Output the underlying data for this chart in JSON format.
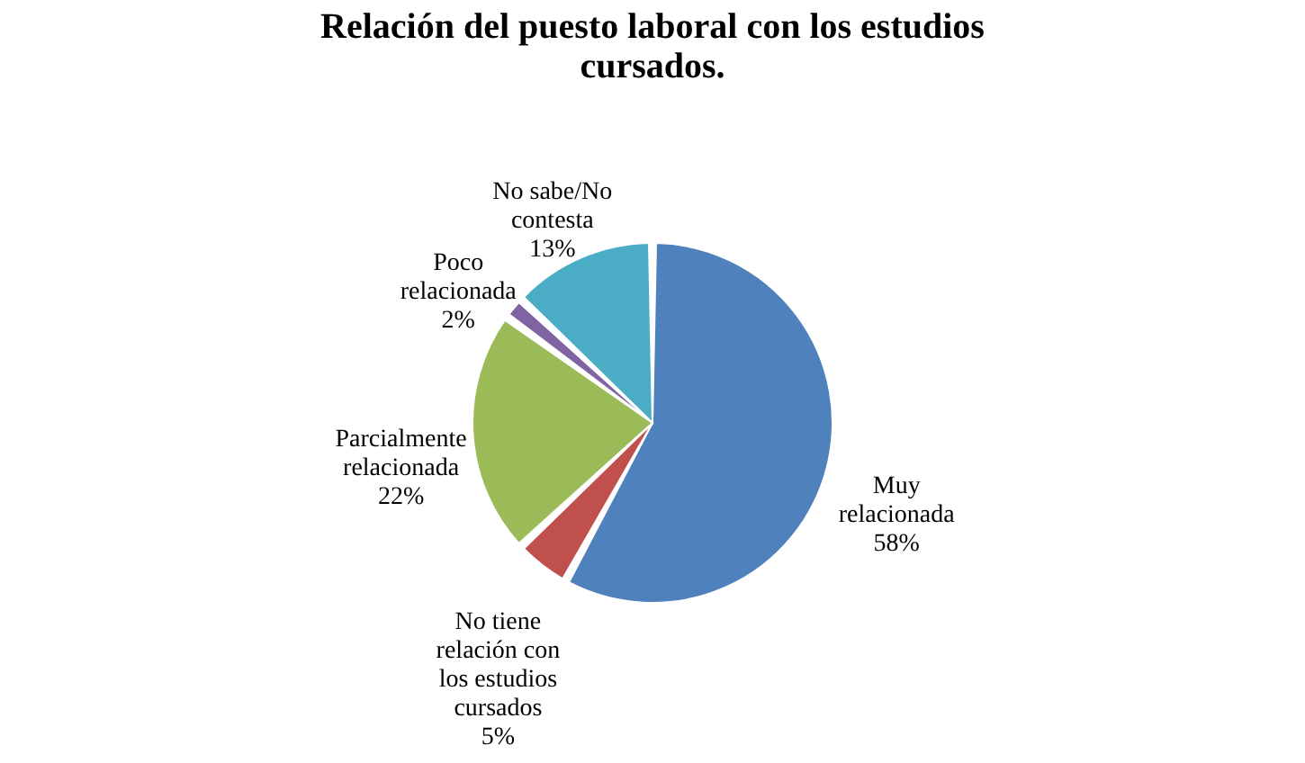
{
  "chart_data": {
    "type": "pie",
    "title": "Relación del puesto laboral con los estudios cursados.",
    "categories": [
      "Muy relacionada",
      "No tiene relación con los estudios cursados",
      "Parcialmente relacionada",
      "Poco relacionada",
      "No sabe/No contesta"
    ],
    "values": [
      58,
      5,
      22,
      2,
      13
    ],
    "value_labels": [
      "58%",
      "5%",
      "22%",
      "2%",
      "13%"
    ],
    "colors": [
      "#4f81bd",
      "#c0504d",
      "#9bbb59",
      "#8064a2",
      "#4bacc6"
    ]
  }
}
